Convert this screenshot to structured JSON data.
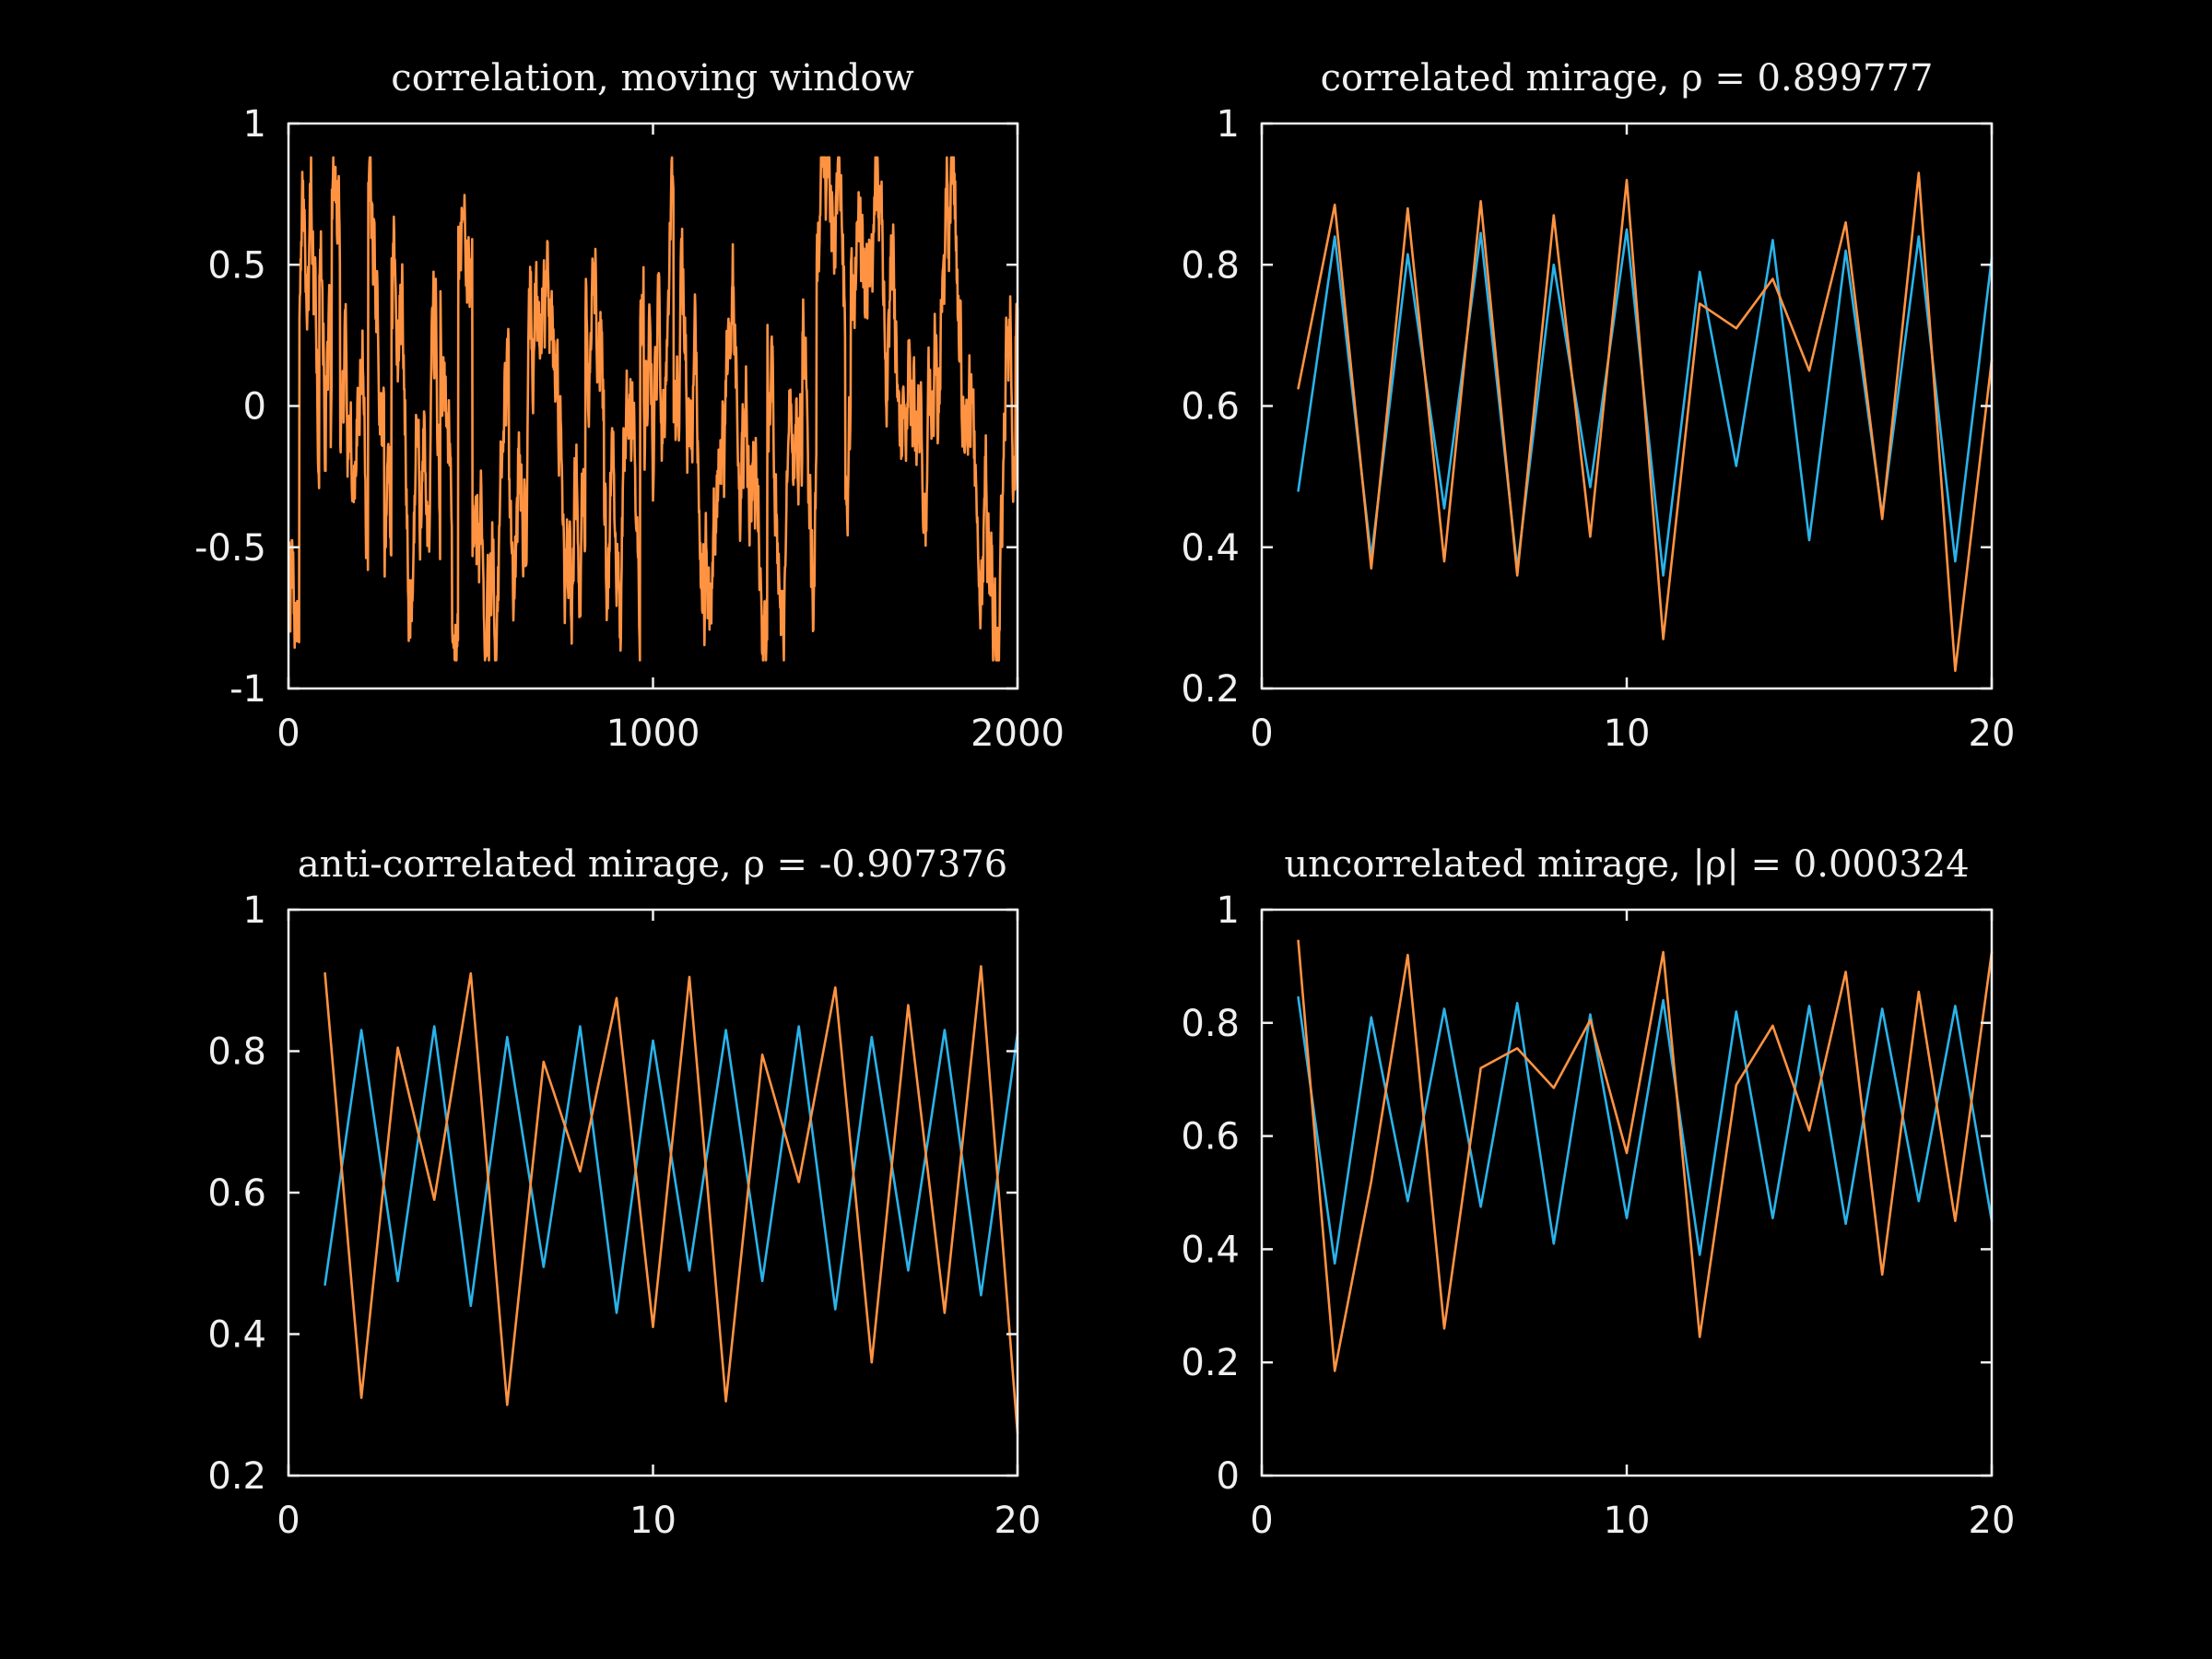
{
  "colors": {
    "background": "#000000",
    "foreground": "#f0f0f0",
    "orange": "#ff9342",
    "blue": "#2ab3ea"
  },
  "chart_data": [
    {
      "type": "line",
      "title": "correlation, moving window",
      "xlim": [
        0,
        2000
      ],
      "ylim": [
        -1,
        1
      ],
      "xticks": [
        "0",
        "1000",
        "2000"
      ],
      "yticks": [
        "-1",
        "-0.5",
        "0",
        "0.5",
        "1"
      ],
      "series": [
        {
          "color": "#ff9342",
          "generated_noise": {
            "n": 2000,
            "seed": 7,
            "min": -0.9,
            "max": 0.88
          }
        }
      ]
    },
    {
      "type": "line",
      "title": "correlated mirage, ρ = 0.899777",
      "xlim": [
        0,
        20
      ],
      "ylim": [
        0.2,
        1
      ],
      "xticks": [
        "0",
        "10",
        "20"
      ],
      "yticks": [
        "0.2",
        "0.4",
        "0.6",
        "0.8",
        "1"
      ],
      "x": [
        1,
        2,
        3,
        4,
        5,
        6,
        7,
        8,
        9,
        10,
        11,
        12,
        13,
        14,
        15,
        16,
        17,
        18,
        19,
        20
      ],
      "series": [
        {
          "color": "#2ab3ea",
          "values": [
            0.48,
            0.84,
            0.385,
            0.815,
            0.455,
            0.845,
            0.37,
            0.8,
            0.485,
            0.85,
            0.36,
            0.79,
            0.515,
            0.835,
            0.41,
            0.82,
            0.445,
            0.84,
            0.38,
            0.81
          ]
        },
        {
          "color": "#ff9342",
          "values": [
            0.625,
            0.885,
            0.37,
            0.88,
            0.38,
            0.89,
            0.36,
            0.87,
            0.415,
            0.92,
            0.27,
            0.745,
            0.71,
            0.78,
            0.65,
            0.86,
            0.44,
            0.93,
            0.225,
            0.665
          ]
        }
      ]
    },
    {
      "type": "line",
      "title": "anti-correlated mirage, ρ = -0.907376",
      "xlim": [
        0,
        20
      ],
      "ylim": [
        0.2,
        1
      ],
      "xticks": [
        "0",
        "10",
        "20"
      ],
      "yticks": [
        "0.2",
        "0.4",
        "0.6",
        "0.8",
        "1"
      ],
      "x": [
        1,
        2,
        3,
        4,
        5,
        6,
        7,
        8,
        9,
        10,
        11,
        12,
        13,
        14,
        15,
        16,
        17,
        18,
        19,
        20
      ],
      "series": [
        {
          "color": "#2ab3ea",
          "values": [
            0.47,
            0.83,
            0.475,
            0.835,
            0.44,
            0.82,
            0.495,
            0.835,
            0.43,
            0.815,
            0.49,
            0.83,
            0.475,
            0.835,
            0.435,
            0.82,
            0.49,
            0.83,
            0.455,
            0.825
          ]
        },
        {
          "color": "#ff9342",
          "values": [
            0.91,
            0.31,
            0.805,
            0.59,
            0.91,
            0.3,
            0.785,
            0.63,
            0.875,
            0.41,
            0.905,
            0.305,
            0.795,
            0.615,
            0.89,
            0.36,
            0.865,
            0.43,
            0.92,
            0.26
          ]
        }
      ]
    },
    {
      "type": "line",
      "title": "uncorrelated mirage, |ρ| = 0.000324",
      "xlim": [
        0,
        20
      ],
      "ylim": [
        0,
        1
      ],
      "xticks": [
        "0",
        "10",
        "20"
      ],
      "yticks": [
        "0",
        "0.2",
        "0.4",
        "0.6",
        "0.8",
        "1"
      ],
      "x": [
        1,
        2,
        3,
        4,
        5,
        6,
        7,
        8,
        9,
        10,
        11,
        12,
        13,
        14,
        15,
        16,
        17,
        18,
        19,
        20
      ],
      "series": [
        {
          "color": "#2ab3ea",
          "values": [
            0.845,
            0.375,
            0.81,
            0.485,
            0.825,
            0.475,
            0.835,
            0.41,
            0.815,
            0.455,
            0.84,
            0.39,
            0.82,
            0.455,
            0.83,
            0.445,
            0.825,
            0.485,
            0.83,
            0.45
          ]
        },
        {
          "color": "#ff9342",
          "values": [
            0.945,
            0.185,
            0.52,
            0.92,
            0.26,
            0.72,
            0.755,
            0.685,
            0.805,
            0.57,
            0.925,
            0.245,
            0.69,
            0.795,
            0.61,
            0.89,
            0.355,
            0.855,
            0.45,
            0.925
          ]
        }
      ]
    }
  ]
}
